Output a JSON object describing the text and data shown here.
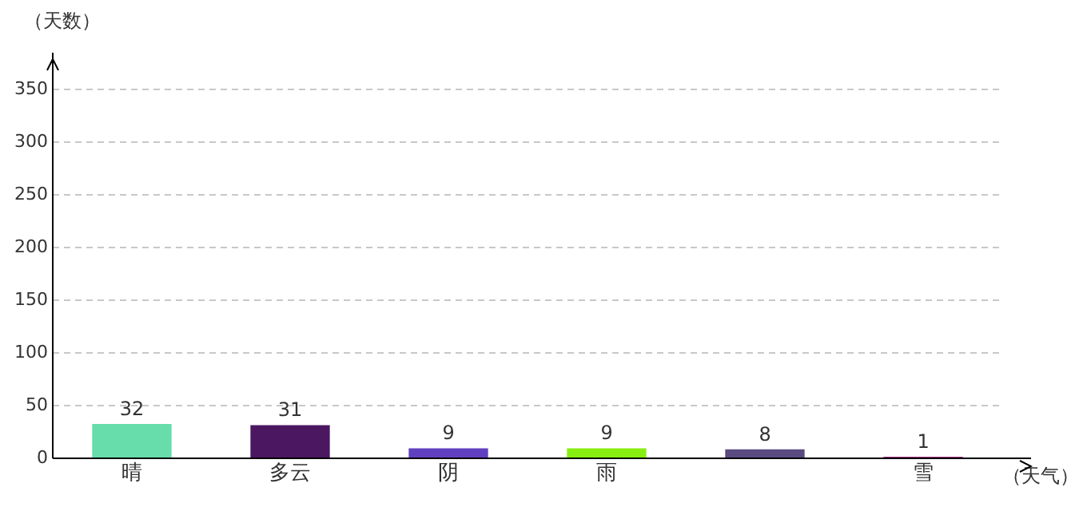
{
  "chart_data": {
    "type": "bar",
    "xlabel": "（天气）",
    "ylabel": "（天数）",
    "categories": [
      "晴",
      "多云",
      "阴",
      "雨",
      null,
      "雪"
    ],
    "values": [
      32,
      31,
      9,
      9,
      8,
      1
    ],
    "colors": [
      "#66ddaa",
      "#4b1760",
      "#6040c0",
      "#88ee11",
      "#5a4a80",
      "#aa3388"
    ],
    "ylim": [
      0,
      385
    ],
    "yticks": [
      0,
      50,
      100,
      150,
      200,
      250,
      300,
      350
    ],
    "grid": "y",
    "data_labels": true,
    "legend": false
  }
}
